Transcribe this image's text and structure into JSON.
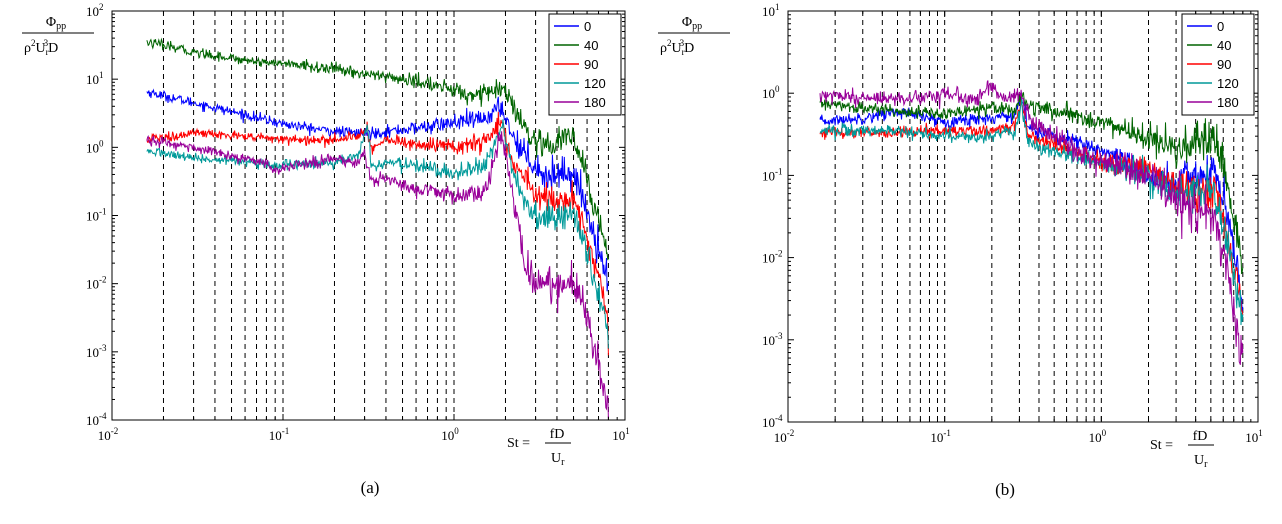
{
  "chart_data": [
    {
      "type": "line",
      "panel_label": "(a)",
      "x_scale": "log",
      "y_scale": "log",
      "xlim": [
        0.01,
        10
      ],
      "ylim": [
        0.0001,
        100
      ],
      "x_tick_labels": [
        {
          "base": "10",
          "exp": "-2"
        },
        {
          "base": "10",
          "exp": "-1"
        },
        {
          "base": "10",
          "exp": "0"
        },
        {
          "base": "10",
          "exp": "1"
        }
      ],
      "y_tick_labels": [
        {
          "base": "10",
          "exp": "-4"
        },
        {
          "base": "10",
          "exp": "-3"
        },
        {
          "base": "10",
          "exp": "-2"
        },
        {
          "base": "10",
          "exp": "-1"
        },
        {
          "base": "10",
          "exp": "0"
        },
        {
          "base": "10",
          "exp": "1"
        },
        {
          "base": "10",
          "exp": "2"
        }
      ],
      "ylabel": {
        "num_symbol": "Φ",
        "num_sub": "pp",
        "den_a": "ρ",
        "den_a_sup": "2",
        "den_b": "U",
        "den_b_sub": "r",
        "den_b_sup": "3",
        "den_c": "D"
      },
      "xlabel": {
        "lhs": "St =",
        "num": "fD",
        "den": "U",
        "den_sub": "r"
      },
      "vlines": [
        0.02,
        0.03,
        0.04,
        0.05,
        0.06,
        0.07,
        0.08,
        0.09,
        0.1,
        0.2,
        0.3,
        0.4,
        0.5,
        0.6,
        0.7,
        0.8,
        0.9,
        1,
        2,
        3,
        4,
        5,
        6,
        7,
        8
      ],
      "grid": false,
      "legend_position": "top-right",
      "series": [
        {
          "name": "0",
          "color": "#0000ff",
          "noise": 0.035,
          "points": [
            [
              0.016,
              6.5
            ],
            [
              0.03,
              4.5
            ],
            [
              0.06,
              3.0
            ],
            [
              0.1,
              2.2
            ],
            [
              0.2,
              1.7
            ],
            [
              0.3,
              1.6
            ],
            [
              0.5,
              1.8
            ],
            [
              1.0,
              2.3
            ],
            [
              1.5,
              2.6
            ],
            [
              1.9,
              4.0
            ],
            [
              2.2,
              1.5
            ],
            [
              2.6,
              0.8
            ],
            [
              3.0,
              0.55
            ],
            [
              3.5,
              0.35
            ],
            [
              4.2,
              0.45
            ],
            [
              5.0,
              0.4
            ],
            [
              5.6,
              0.2
            ],
            [
              6.5,
              0.06
            ],
            [
              7.5,
              0.02
            ],
            [
              8.0,
              0.011
            ]
          ]
        },
        {
          "name": "40",
          "color": "#006400",
          "noise": 0.035,
          "points": [
            [
              0.016,
              35
            ],
            [
              0.03,
              25
            ],
            [
              0.06,
              19
            ],
            [
              0.1,
              17
            ],
            [
              0.2,
              14
            ],
            [
              0.3,
              12
            ],
            [
              0.5,
              10
            ],
            [
              0.8,
              8
            ],
            [
              1.2,
              6
            ],
            [
              1.7,
              6.5
            ],
            [
              1.9,
              7.5
            ],
            [
              2.2,
              4.0
            ],
            [
              2.6,
              1.8
            ],
            [
              3.0,
              1.1
            ],
            [
              3.5,
              0.9
            ],
            [
              4.2,
              1.3
            ],
            [
              5.0,
              1.4
            ],
            [
              5.6,
              0.6
            ],
            [
              6.5,
              0.15
            ],
            [
              7.5,
              0.05
            ],
            [
              8.0,
              0.028
            ]
          ]
        },
        {
          "name": "90",
          "color": "#ff0000",
          "noise": 0.035,
          "points": [
            [
              0.016,
              1.3
            ],
            [
              0.03,
              1.6
            ],
            [
              0.05,
              1.5
            ],
            [
              0.1,
              1.3
            ],
            [
              0.2,
              1.3
            ],
            [
              0.28,
              1.5
            ],
            [
              0.31,
              2.0
            ],
            [
              0.33,
              0.95
            ],
            [
              0.4,
              1.3
            ],
            [
              0.6,
              1.1
            ],
            [
              1.0,
              1.0
            ],
            [
              1.5,
              1.2
            ],
            [
              1.9,
              2.5
            ],
            [
              2.2,
              0.6
            ],
            [
              2.6,
              0.35
            ],
            [
              3.0,
              0.2
            ],
            [
              4.0,
              0.15
            ],
            [
              5.0,
              0.18
            ],
            [
              5.6,
              0.08
            ],
            [
              6.5,
              0.02
            ],
            [
              7.5,
              0.006
            ],
            [
              8.0,
              0.0025
            ]
          ]
        },
        {
          "name": "120",
          "color": "#009999",
          "noise": 0.035,
          "points": [
            [
              0.016,
              0.9
            ],
            [
              0.03,
              0.7
            ],
            [
              0.06,
              0.6
            ],
            [
              0.09,
              0.55
            ],
            [
              0.1,
              0.55
            ],
            [
              0.2,
              0.6
            ],
            [
              0.28,
              0.8
            ],
            [
              0.31,
              2.3
            ],
            [
              0.33,
              0.5
            ],
            [
              0.4,
              0.6
            ],
            [
              0.7,
              0.5
            ],
            [
              1.0,
              0.4
            ],
            [
              1.5,
              0.55
            ],
            [
              1.9,
              2.0
            ],
            [
              2.2,
              0.5
            ],
            [
              2.6,
              0.15
            ],
            [
              3.0,
              0.09
            ],
            [
              4.0,
              0.09
            ],
            [
              5.0,
              0.12
            ],
            [
              5.6,
              0.05
            ],
            [
              6.5,
              0.012
            ],
            [
              7.5,
              0.004
            ],
            [
              8.0,
              0.0015
            ]
          ]
        },
        {
          "name": "180",
          "color": "#990099",
          "noise": 0.04,
          "points": [
            [
              0.016,
              1.3
            ],
            [
              0.03,
              1.0
            ],
            [
              0.06,
              0.7
            ],
            [
              0.08,
              0.6
            ],
            [
              0.09,
              0.45
            ],
            [
              0.12,
              0.55
            ],
            [
              0.2,
              0.7
            ],
            [
              0.28,
              0.6
            ],
            [
              0.3,
              0.8
            ],
            [
              0.33,
              0.3
            ],
            [
              0.4,
              0.35
            ],
            [
              0.6,
              0.25
            ],
            [
              1.0,
              0.2
            ],
            [
              1.5,
              0.2
            ],
            [
              1.9,
              1.5
            ],
            [
              2.2,
              0.2
            ],
            [
              2.6,
              0.02
            ],
            [
              3.0,
              0.01
            ],
            [
              4.0,
              0.01
            ],
            [
              5.0,
              0.01
            ],
            [
              5.6,
              0.006
            ],
            [
              6.5,
              0.0015
            ],
            [
              7.5,
              0.0003
            ],
            [
              8.0,
              0.0001
            ]
          ]
        }
      ]
    },
    {
      "type": "line",
      "panel_label": "(b)",
      "x_scale": "log",
      "y_scale": "log",
      "xlim": [
        0.01,
        10
      ],
      "ylim": [
        0.0001,
        10
      ],
      "x_tick_labels": [
        {
          "base": "10",
          "exp": "-2"
        },
        {
          "base": "10",
          "exp": "-1"
        },
        {
          "base": "10",
          "exp": "0"
        },
        {
          "base": "10",
          "exp": "1"
        }
      ],
      "y_tick_labels": [
        {
          "base": "10",
          "exp": "-4"
        },
        {
          "base": "10",
          "exp": "-3"
        },
        {
          "base": "10",
          "exp": "-2"
        },
        {
          "base": "10",
          "exp": "-1"
        },
        {
          "base": "10",
          "exp": "0"
        },
        {
          "base": "10",
          "exp": "1"
        }
      ],
      "ylabel": {
        "num_symbol": "Φ",
        "num_sub": "pp",
        "den_a": "ρ",
        "den_a_sup": "2",
        "den_b": "U",
        "den_b_sub": "r",
        "den_b_sup": "3",
        "den_c": "D"
      },
      "xlabel": {
        "lhs": "St =",
        "num": "fD",
        "den": "U",
        "den_sub": "r"
      },
      "vlines": [
        0.02,
        0.03,
        0.04,
        0.05,
        0.06,
        0.07,
        0.08,
        0.09,
        0.1,
        0.2,
        0.3,
        0.4,
        0.5,
        0.6,
        0.7,
        0.8,
        0.9,
        1,
        2,
        3,
        4,
        5,
        6,
        7,
        8
      ],
      "grid": false,
      "legend_position": "top-right",
      "series": [
        {
          "name": "0",
          "color": "#0000ff",
          "noise": 0.035,
          "points": [
            [
              0.016,
              0.45
            ],
            [
              0.03,
              0.5
            ],
            [
              0.05,
              0.6
            ],
            [
              0.1,
              0.45
            ],
            [
              0.2,
              0.5
            ],
            [
              0.28,
              0.55
            ],
            [
              0.31,
              0.9
            ],
            [
              0.34,
              0.4
            ],
            [
              0.5,
              0.3
            ],
            [
              1.0,
              0.2
            ],
            [
              2.0,
              0.1
            ],
            [
              3.0,
              0.08
            ],
            [
              4.5,
              0.1
            ],
            [
              5.2,
              0.12
            ],
            [
              6.0,
              0.05
            ],
            [
              7.0,
              0.012
            ],
            [
              8.0,
              0.003
            ]
          ]
        },
        {
          "name": "40",
          "color": "#006400",
          "noise": 0.035,
          "points": [
            [
              0.016,
              0.75
            ],
            [
              0.03,
              0.65
            ],
            [
              0.06,
              0.6
            ],
            [
              0.1,
              0.55
            ],
            [
              0.2,
              0.7
            ],
            [
              0.28,
              0.6
            ],
            [
              0.31,
              1.0
            ],
            [
              0.34,
              0.7
            ],
            [
              0.5,
              0.6
            ],
            [
              1.0,
              0.45
            ],
            [
              2.0,
              0.28
            ],
            [
              3.0,
              0.2
            ],
            [
              4.5,
              0.25
            ],
            [
              5.2,
              0.28
            ],
            [
              6.0,
              0.12
            ],
            [
              7.0,
              0.03
            ],
            [
              8.0,
              0.008
            ]
          ]
        },
        {
          "name": "90",
          "color": "#ff0000",
          "noise": 0.035,
          "points": [
            [
              0.016,
              0.33
            ],
            [
              0.05,
              0.33
            ],
            [
              0.1,
              0.35
            ],
            [
              0.2,
              0.35
            ],
            [
              0.28,
              0.4
            ],
            [
              0.31,
              0.8
            ],
            [
              0.34,
              0.3
            ],
            [
              0.5,
              0.25
            ],
            [
              1.0,
              0.15
            ],
            [
              2.0,
              0.12
            ],
            [
              3.0,
              0.07
            ],
            [
              4.5,
              0.06
            ],
            [
              5.2,
              0.07
            ],
            [
              6.0,
              0.03
            ],
            [
              7.0,
              0.008
            ],
            [
              8.0,
              0.002
            ]
          ]
        },
        {
          "name": "120",
          "color": "#009999",
          "noise": 0.035,
          "points": [
            [
              0.016,
              0.35
            ],
            [
              0.05,
              0.35
            ],
            [
              0.1,
              0.3
            ],
            [
              0.2,
              0.3
            ],
            [
              0.28,
              0.35
            ],
            [
              0.31,
              0.7
            ],
            [
              0.34,
              0.25
            ],
            [
              0.5,
              0.2
            ],
            [
              1.0,
              0.14
            ],
            [
              2.0,
              0.1
            ],
            [
              3.0,
              0.06
            ],
            [
              4.5,
              0.06
            ],
            [
              5.2,
              0.07
            ],
            [
              6.0,
              0.025
            ],
            [
              7.0,
              0.006
            ],
            [
              8.0,
              0.0013
            ]
          ]
        },
        {
          "name": "180",
          "color": "#990099",
          "noise": 0.045,
          "points": [
            [
              0.016,
              1.0
            ],
            [
              0.03,
              0.9
            ],
            [
              0.06,
              0.85
            ],
            [
              0.09,
              0.9
            ],
            [
              0.12,
              1.0
            ],
            [
              0.15,
              0.8
            ],
            [
              0.2,
              1.2
            ],
            [
              0.25,
              0.8
            ],
            [
              0.3,
              1.0
            ],
            [
              0.35,
              0.5
            ],
            [
              0.5,
              0.3
            ],
            [
              1.0,
              0.15
            ],
            [
              2.0,
              0.1
            ],
            [
              3.0,
              0.05
            ],
            [
              4.0,
              0.035
            ],
            [
              5.0,
              0.04
            ],
            [
              6.0,
              0.012
            ],
            [
              7.0,
              0.002
            ],
            [
              8.0,
              0.0004
            ]
          ]
        }
      ]
    }
  ]
}
